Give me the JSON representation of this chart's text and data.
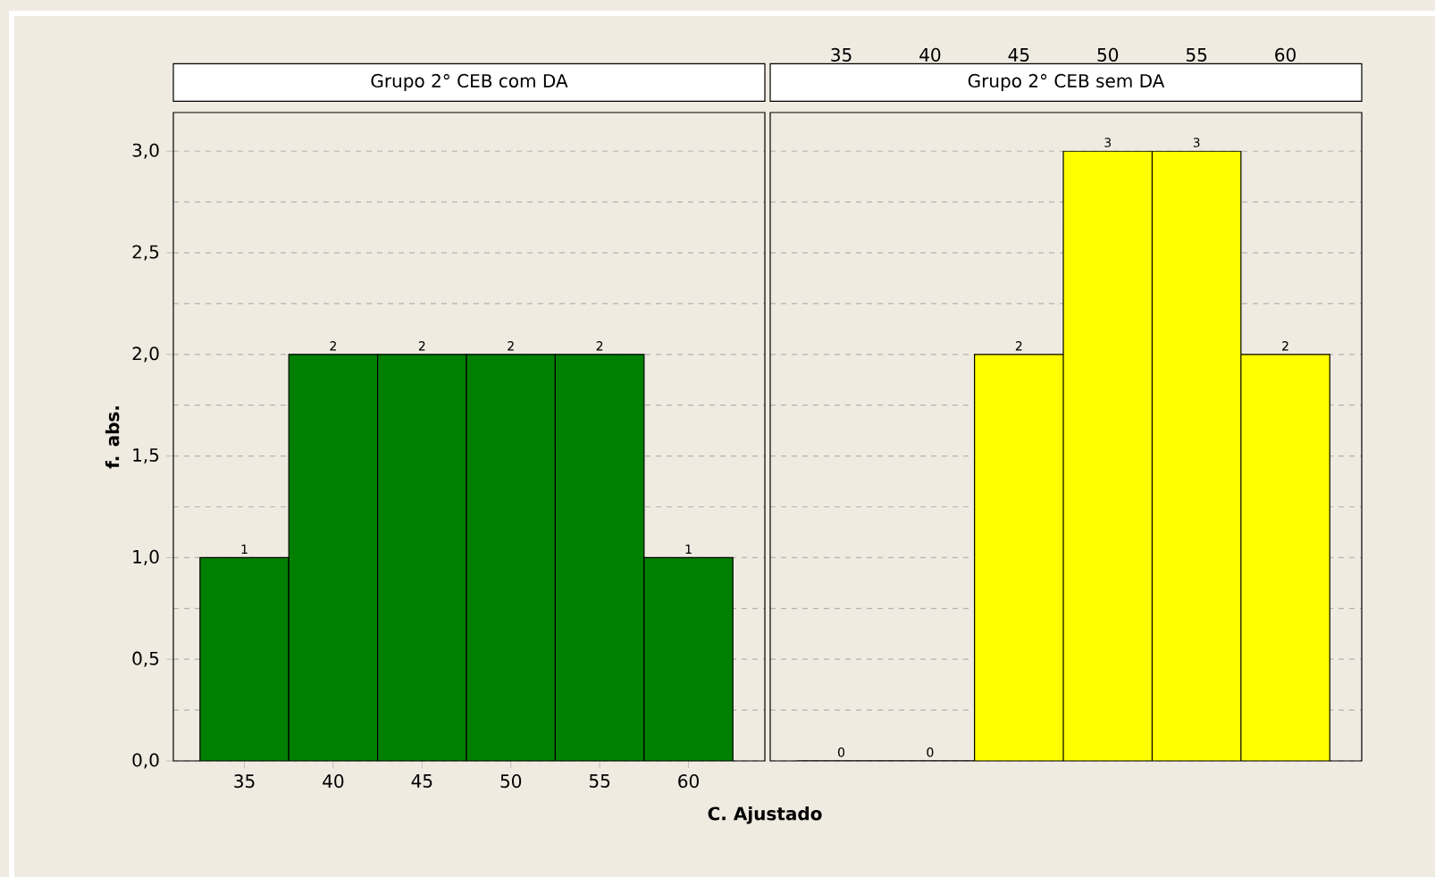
{
  "chart_data": [
    {
      "type": "histogram",
      "title": "Grupo 2° CEB com DA",
      "xlabel": "C. Ajustado",
      "ylabel": "f. abs.",
      "bins": [
        32.5,
        37.5,
        42.5,
        47.5,
        52.5,
        57.5,
        62.5
      ],
      "values": [
        1,
        2,
        2,
        2,
        2,
        1
      ],
      "color": "#007f00",
      "data_labels": true,
      "xlim": [
        31,
        64.3
      ],
      "xticks": [
        35,
        40,
        45,
        50,
        55,
        60
      ],
      "ylim": [
        0,
        3.19
      ],
      "yticks": [
        {
          "value": 0,
          "label": "0,0"
        },
        {
          "value": 0.5,
          "label": "0,5"
        },
        {
          "value": 1,
          "label": "1,0"
        },
        {
          "value": 1.5,
          "label": "1,5"
        },
        {
          "value": 2,
          "label": "2,0"
        },
        {
          "value": 2.5,
          "label": "2,5"
        },
        {
          "value": 3,
          "label": "3,0"
        }
      ],
      "grid": "y"
    },
    {
      "type": "histogram",
      "title": "Grupo 2° CEB sem DA",
      "bins": [
        32.5,
        37.5,
        42.5,
        47.5,
        52.5,
        57.5,
        62.5
      ],
      "values": [
        0,
        0,
        2,
        3,
        3,
        2
      ],
      "color": "#ffff00",
      "data_labels": true,
      "xlim": [
        31,
        64.3
      ],
      "x2lim": [
        31,
        64.3
      ],
      "x2ticks": [
        35,
        40,
        45,
        50,
        55,
        60
      ],
      "ylim": [
        0,
        3.19
      ],
      "yticks": [
        {
          "value": 0,
          "label": null
        },
        {
          "value": 0.5,
          "label": null
        },
        {
          "value": 1,
          "label": null
        },
        {
          "value": 1.5,
          "label": null
        },
        {
          "value": 2,
          "label": null
        },
        {
          "value": 2.5,
          "label": null
        },
        {
          "value": 3,
          "label": null
        }
      ],
      "grid": "y",
      "tick_labels": "x"
    }
  ]
}
